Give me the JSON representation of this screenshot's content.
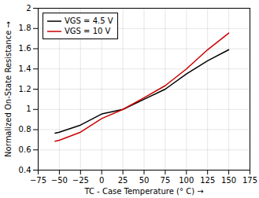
{
  "chart_data": {
    "type": "line",
    "xlabel": "TC - Case Temperature (° C)",
    "ylabel": "Normalized On-State Resistance",
    "x": [
      -55,
      -50,
      -25,
      0,
      25,
      50,
      75,
      100,
      125,
      150
    ],
    "series": [
      {
        "name": "VGS = 4.5 V",
        "color": "#000000",
        "values": [
          0.765,
          0.775,
          0.845,
          0.955,
          1.0,
          1.1,
          1.2,
          1.35,
          1.48,
          1.59
        ]
      },
      {
        "name": "VGS = 10 V",
        "color": "#cc0000",
        "values": [
          0.685,
          0.695,
          0.775,
          0.91,
          1.0,
          1.115,
          1.235,
          1.4,
          1.59,
          1.755
        ]
      }
    ],
    "xlim": [
      -75,
      175
    ],
    "ylim": [
      0.4,
      2.0
    ],
    "xticks": [
      -75,
      -50,
      -25,
      0,
      25,
      50,
      75,
      100,
      125,
      150,
      175
    ],
    "yticks": [
      0.4,
      0.6,
      0.8,
      1.0,
      1.2,
      1.4,
      1.6,
      1.8,
      2.0
    ],
    "grid": true,
    "legend": "upper-left"
  }
}
